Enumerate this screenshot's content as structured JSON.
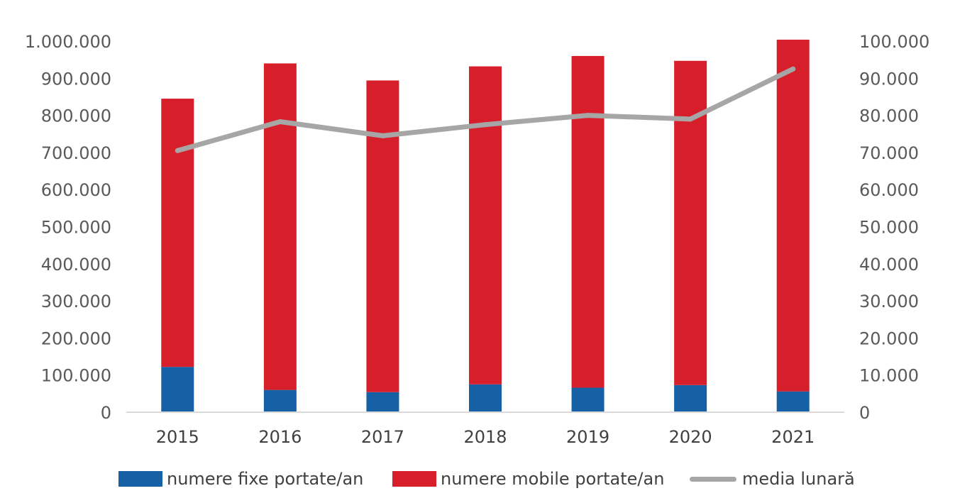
{
  "chart_data": {
    "type": "bar",
    "stacked": true,
    "categories": [
      "2015",
      "2016",
      "2017",
      "2018",
      "2019",
      "2020",
      "2021"
    ],
    "series": [
      {
        "name": "numere fixe portate/an",
        "type": "bar",
        "axis": "left",
        "color": "#1660a5",
        "values": [
          122000,
          60000,
          54000,
          75000,
          66000,
          73000,
          56000
        ]
      },
      {
        "name": "numere mobile portate/an",
        "type": "bar",
        "axis": "left",
        "color": "#d71e2b",
        "values": [
          723000,
          880000,
          840000,
          857000,
          894000,
          874000,
          948000
        ]
      },
      {
        "name": "media lunară",
        "type": "line",
        "axis": "right",
        "color": "#a6a6a6",
        "values": [
          70500,
          78300,
          74500,
          77500,
          80000,
          79000,
          92500
        ]
      }
    ],
    "ylim_left": [
      0,
      1000000
    ],
    "ylim_right": [
      0,
      100000
    ],
    "yticks_left": [
      "0",
      "100.000",
      "200.000",
      "300.000",
      "400.000",
      "500.000",
      "600.000",
      "700.000",
      "800.000",
      "900.000",
      "1.000.000"
    ],
    "yticks_right": [
      "0",
      "10.000",
      "20.000",
      "30.000",
      "40.000",
      "50.000",
      "60.000",
      "70.000",
      "80.000",
      "90.000",
      "100.000"
    ],
    "legend_position": "bottom",
    "grid": false
  }
}
